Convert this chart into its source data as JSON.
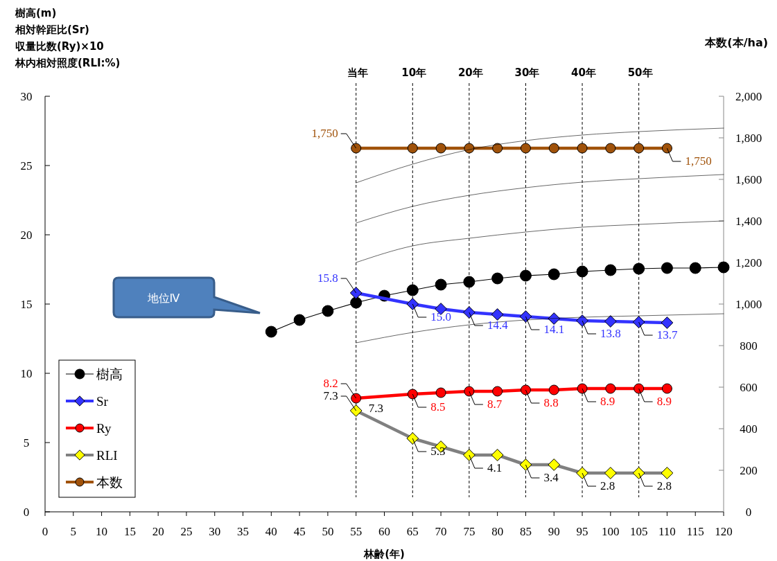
{
  "chart_data": {
    "type": "line",
    "xlabel": "林齢(年)",
    "ylabel": "樹高(m)\n相対幹距比(Sr)\n収量比数(Ry)×10\n林内相対照度(RLI:%)",
    "y2label": "本数(本/ha)",
    "xlim": [
      0,
      120
    ],
    "xticks": [
      0,
      5,
      10,
      15,
      20,
      25,
      30,
      35,
      40,
      45,
      50,
      55,
      60,
      65,
      70,
      75,
      80,
      85,
      90,
      95,
      100,
      105,
      110,
      115,
      120
    ],
    "ylim": [
      0,
      30
    ],
    "yticks": [
      0,
      5,
      10,
      15,
      20,
      25,
      30
    ],
    "y2lim": [
      0,
      2000
    ],
    "y2ticks": [
      0,
      200,
      400,
      600,
      800,
      {
        "value": 1000,
        "label": "1,000"
      },
      {
        "value": 1200,
        "label": "1,200"
      },
      {
        "value": 1400,
        "label": "1,400"
      },
      {
        "value": 1600,
        "label": "1,600"
      },
      {
        "value": 1800,
        "label": "1,800"
      },
      {
        "value": 2000,
        "label": "2,000"
      }
    ],
    "legend": "bottom left",
    "grid": false,
    "line_style": "solid",
    "series": [
      {
        "name": "樹高",
        "color": "#000000",
        "marker": "circle",
        "x": [
          40,
          45,
          50,
          55,
          60,
          65,
          70,
          75,
          80,
          85,
          90,
          95,
          100,
          105,
          110,
          115,
          120
        ],
        "values": [
          13.0,
          13.85,
          14.5,
          15.1,
          15.6,
          16.0,
          16.4,
          16.6,
          16.85,
          17.05,
          17.15,
          17.35,
          17.45,
          17.55,
          17.6,
          17.6,
          17.65
        ]
      },
      {
        "name": "Sr",
        "color": "#3333ff",
        "marker": "diamond",
        "x": [
          55,
          65,
          70,
          75,
          80,
          85,
          90,
          95,
          100,
          105,
          110
        ],
        "values": [
          15.8,
          15.0,
          14.65,
          14.4,
          14.25,
          14.1,
          13.95,
          13.8,
          13.75,
          13.7,
          13.65
        ],
        "value_labels": [
          "15.8",
          "15.0",
          null,
          "14.4",
          null,
          "14.1",
          null,
          "13.8",
          null,
          "13.7",
          null
        ]
      },
      {
        "name": "Ry",
        "color": "#ff0000",
        "marker": "circle",
        "x": [
          55,
          65,
          70,
          75,
          80,
          85,
          90,
          95,
          100,
          105,
          110
        ],
        "values": [
          8.2,
          8.5,
          8.6,
          8.7,
          8.7,
          8.8,
          8.8,
          8.9,
          8.9,
          8.9,
          8.9
        ],
        "value_labels": [
          "8.2",
          "8.5",
          null,
          "8.7",
          null,
          "8.8",
          null,
          "8.9",
          null,
          "8.9",
          null
        ]
      },
      {
        "name": "RLI",
        "color": "#808080",
        "colors": [
          "#ffff00",
          "#ffff00",
          "#ffff00",
          "#ffff00",
          "#ffff00",
          "#ffff00",
          "#ffff00",
          "#ffff00",
          "#ffff00",
          "#ffff00",
          "#ffff00"
        ],
        "marker": "diamond",
        "x": [
          55,
          65,
          70,
          75,
          80,
          85,
          90,
          95,
          100,
          105,
          110
        ],
        "values": [
          7.3,
          5.3,
          4.7,
          4.1,
          4.1,
          3.4,
          3.4,
          2.8,
          2.8,
          2.8,
          2.8
        ],
        "value_labels": [
          "7.3",
          "5.3",
          null,
          "4.1",
          null,
          "3.4",
          null,
          "2.8",
          null,
          "2.8",
          null
        ]
      },
      {
        "name": "本数",
        "color": "#a0520a",
        "marker": "circle",
        "axis": "y2",
        "x": [
          55,
          65,
          70,
          75,
          80,
          85,
          90,
          95,
          100,
          105,
          110
        ],
        "values": [
          1750,
          1750,
          1750,
          1750,
          1750,
          1750,
          1750,
          1750,
          1750,
          1750,
          1750
        ],
        "value_labels": [
          "1,750",
          null,
          null,
          null,
          null,
          null,
          null,
          null,
          null,
          null,
          "1,750"
        ]
      },
      {
        "color": "#000000",
        "marker": "none",
        "x": [
          55,
          65,
          75,
          85,
          95,
          105,
          120
        ],
        "values": [
          23.75,
          25.1,
          26.15,
          26.8,
          27.2,
          27.45,
          27.7
        ]
      },
      {
        "color": "#000000",
        "marker": "none",
        "x": [
          55,
          65,
          75,
          85,
          95,
          105,
          120
        ],
        "values": [
          20.85,
          22.05,
          22.85,
          23.4,
          23.8,
          24.05,
          24.35
        ]
      },
      {
        "color": "#000000",
        "marker": "none",
        "x": [
          55,
          65,
          75,
          85,
          95,
          105,
          120
        ],
        "values": [
          18.0,
          19.2,
          19.75,
          20.2,
          20.55,
          20.75,
          21.0
        ]
      },
      {
        "color": "#000000",
        "marker": "none",
        "x": [
          55,
          65,
          75,
          85,
          95,
          105,
          120
        ],
        "values": [
          12.2,
          12.95,
          13.5,
          13.85,
          14.05,
          14.15,
          14.3
        ]
      }
    ],
    "ref_lines": [
      {
        "axis": "x",
        "value": 55,
        "label": "当年",
        "line_style": "dashed",
        "color": "#000000"
      },
      {
        "axis": "x",
        "value": 65,
        "label": "10年",
        "line_style": "dashed",
        "color": "#000000"
      },
      {
        "axis": "x",
        "value": 75,
        "label": "20年",
        "line_style": "dashed",
        "color": "#000000"
      },
      {
        "axis": "x",
        "value": 85,
        "label": "30年",
        "line_style": "dashed",
        "color": "#000000"
      },
      {
        "axis": "x",
        "value": 95,
        "label": "40年",
        "line_style": "dashed",
        "color": "#000000"
      },
      {
        "axis": "x",
        "value": 105,
        "label": "50年",
        "line_style": "dashed",
        "color": "#000000"
      }
    ],
    "annotations": [
      "地位Ⅳ",
      {
        "text": "7.3",
        "x": 55,
        "y": 7.3
      }
    ]
  }
}
